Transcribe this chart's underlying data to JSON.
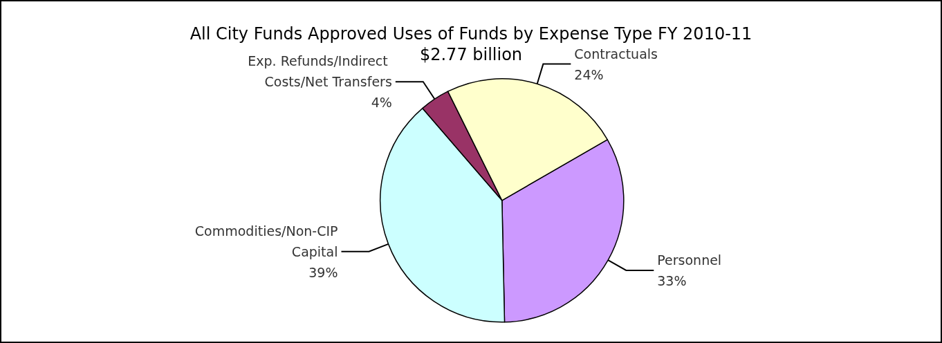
{
  "chart_data": {
    "type": "pie",
    "title": "All City Funds Approved Uses of Funds by Expense Type FY 2010-11",
    "subtitle": "$2.77 billion",
    "categories": [
      "Personnel",
      "Commodities/Non-CIP Capital",
      "Exp. Refunds/Indirect Costs/Net Transfers",
      "Contractuals"
    ],
    "values": [
      33,
      39,
      4,
      24
    ],
    "colors": [
      "#cc99ff",
      "#ccffff",
      "#993366",
      "#ffffcc"
    ],
    "value_labels": [
      "33%",
      "39%",
      "4%",
      "24%"
    ],
    "legend": false
  }
}
